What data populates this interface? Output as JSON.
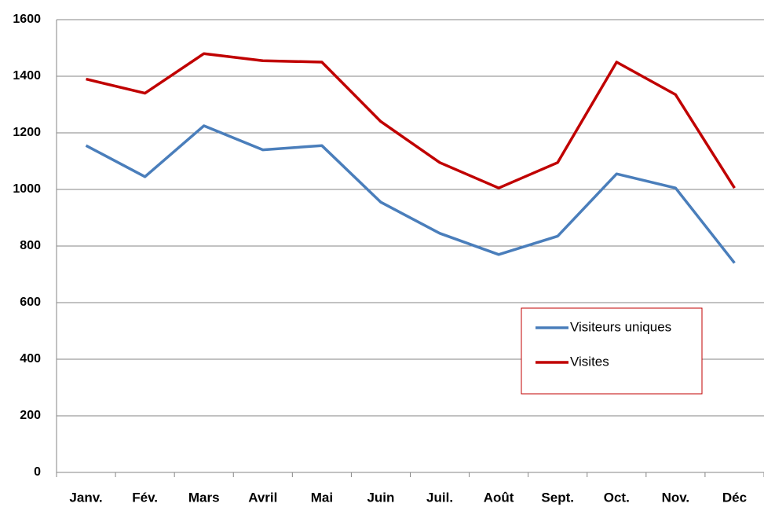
{
  "chart_data": {
    "type": "line",
    "categories": [
      "Janv.",
      "Fév.",
      "Mars",
      "Avril",
      "Mai",
      "Juin",
      "Juil.",
      "Août",
      "Sept.",
      "Oct.",
      "Nov.",
      "Déc"
    ],
    "series": [
      {
        "name": "Visiteurs uniques",
        "color": "#4a7ebb",
        "values": [
          1155,
          1045,
          1225,
          1140,
          1155,
          955,
          845,
          770,
          835,
          1055,
          1005,
          740
        ]
      },
      {
        "name": "Visites",
        "color": "#c00000",
        "values": [
          1390,
          1340,
          1480,
          1455,
          1450,
          1240,
          1095,
          1005,
          1095,
          1450,
          1335,
          1005
        ]
      }
    ],
    "ylim": [
      0,
      1600
    ],
    "yticks": [
      0,
      200,
      400,
      600,
      800,
      1000,
      1200,
      1400,
      1600
    ],
    "grid": true,
    "legend": "right"
  }
}
